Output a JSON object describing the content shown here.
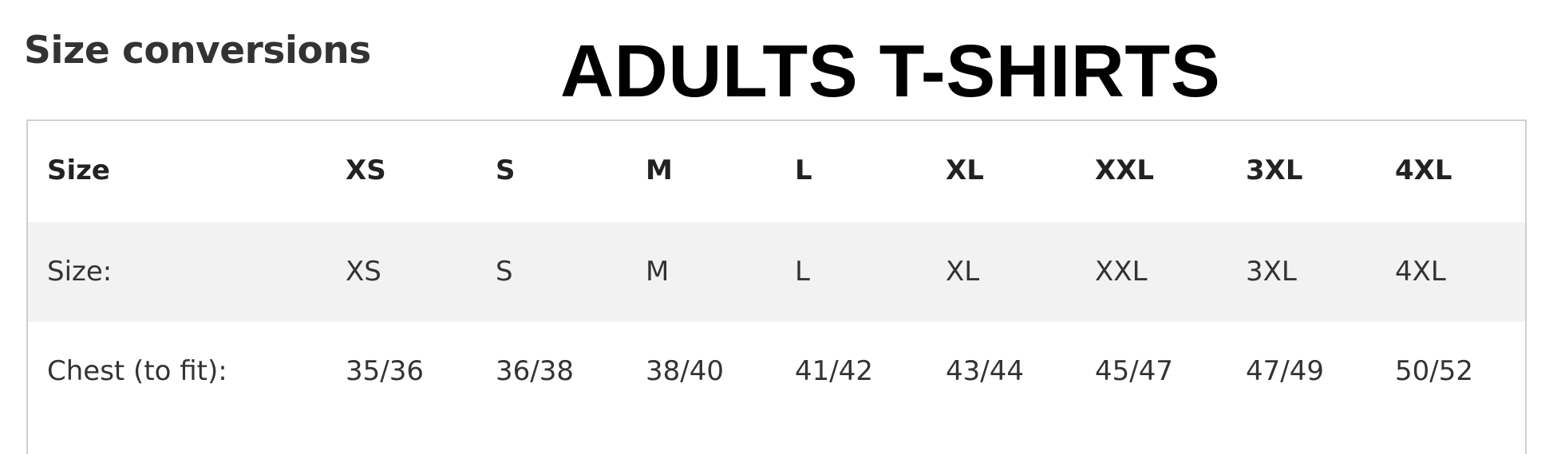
{
  "heading": "Size conversions",
  "title": "ADULTS T-SHIRTS",
  "table": {
    "header": [
      "Size",
      "XS",
      "S",
      "M",
      "L",
      "XL",
      "XXL",
      "3XL",
      "4XL"
    ],
    "rows": [
      [
        "Size:",
        "XS",
        "S",
        "M",
        "L",
        "XL",
        "XXL",
        "3XL",
        "4XL"
      ],
      [
        "Chest (to fit):",
        "35/36",
        "36/38",
        "38/40",
        "41/42",
        "43/44",
        "45/47",
        "47/49",
        "50/52"
      ]
    ]
  }
}
